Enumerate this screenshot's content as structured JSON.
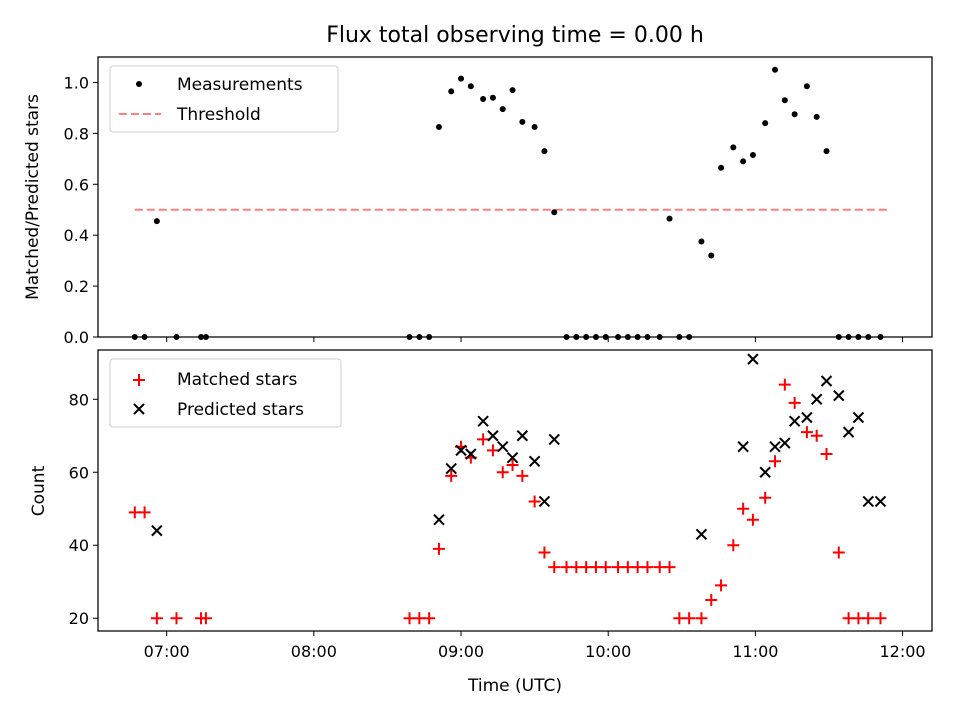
{
  "title": "Flux total observing time = 0.00 h",
  "chart_data": [
    {
      "type": "scatter",
      "ylabel": "Matched/Predicted stars",
      "xlabel": "",
      "xlim": [
        "06:32",
        "12:12"
      ],
      "ylim": [
        0,
        1.1
      ],
      "yticks": [
        0.0,
        0.2,
        0.4,
        0.6,
        0.8,
        1.0
      ],
      "ytick_labels": [
        "0.0",
        "0.2",
        "0.4",
        "0.6",
        "0.8",
        "1.0"
      ],
      "grid": false,
      "legend_position": "top-left",
      "legend": [
        {
          "label": "Measurements",
          "color": "#000000",
          "marker": "dot"
        },
        {
          "label": "Threshold",
          "color": "#ff7f7f",
          "marker": "dashed-line"
        }
      ],
      "threshold": {
        "value": 0.5,
        "x_range": [
          "06:47",
          "11:55"
        ]
      },
      "series": [
        {
          "name": "Measurements",
          "color": "#000000",
          "x": [
            "06:47",
            "06:51",
            "06:56",
            "07:04",
            "07:14",
            "07:16",
            "08:39",
            "08:43",
            "08:47",
            "08:51",
            "08:56",
            "09:00",
            "09:04",
            "09:09",
            "09:13",
            "09:17",
            "09:21",
            "09:25",
            "09:30",
            "09:34",
            "09:38",
            "09:43",
            "09:47",
            "09:51",
            "09:55",
            "09:59",
            "10:04",
            "10:08",
            "10:12",
            "10:16",
            "10:21",
            "10:25",
            "10:29",
            "10:33",
            "10:38",
            "10:42",
            "10:46",
            "10:51",
            "10:55",
            "10:59",
            "11:04",
            "11:08",
            "11:12",
            "11:16",
            "11:21",
            "11:25",
            "11:29",
            "11:34",
            "11:38",
            "11:42",
            "11:46",
            "11:51"
          ],
          "y": [
            0.0,
            0.0,
            0.455,
            0.0,
            0.0,
            0.0,
            0.0,
            0.0,
            0.0,
            0.825,
            0.965,
            1.015,
            0.985,
            0.935,
            0.94,
            0.895,
            0.97,
            0.845,
            0.825,
            0.73,
            0.49,
            0.0,
            0.0,
            0.0,
            0.0,
            0.0,
            0.0,
            0.0,
            0.0,
            0.0,
            0.0,
            0.465,
            0.0,
            0.0,
            0.375,
            0.32,
            0.665,
            0.745,
            0.69,
            0.715,
            0.84,
            1.05,
            0.93,
            0.875,
            0.985,
            0.865,
            0.73,
            0.0,
            0.0,
            0.0,
            0.0,
            0.0
          ]
        }
      ]
    },
    {
      "type": "scatter",
      "ylabel": "Count",
      "xlabel": "Time (UTC)",
      "xlim": [
        "06:32",
        "12:12"
      ],
      "ylim": [
        16.5,
        93.5
      ],
      "yticks": [
        20,
        40,
        60,
        80
      ],
      "ytick_labels": [
        "20",
        "40",
        "60",
        "80"
      ],
      "xticks": [
        "07:00",
        "08:00",
        "09:00",
        "10:00",
        "11:00",
        "12:00"
      ],
      "grid": false,
      "legend_position": "top-left",
      "legend": [
        {
          "label": "Matched stars",
          "color": "#ff0000",
          "marker": "plus"
        },
        {
          "label": "Predicted stars",
          "color": "#000000",
          "marker": "x"
        }
      ],
      "series": [
        {
          "name": "Matched stars",
          "color": "#ff0000",
          "marker": "plus",
          "x": [
            "06:47",
            "06:51",
            "06:56",
            "07:04",
            "07:14",
            "07:16",
            "08:39",
            "08:43",
            "08:47",
            "08:51",
            "08:56",
            "09:00",
            "09:04",
            "09:09",
            "09:13",
            "09:17",
            "09:21",
            "09:25",
            "09:30",
            "09:34",
            "09:38",
            "09:43",
            "09:47",
            "09:51",
            "09:55",
            "09:59",
            "10:04",
            "10:08",
            "10:12",
            "10:16",
            "10:21",
            "10:25",
            "10:29",
            "10:33",
            "10:38",
            "10:42",
            "10:46",
            "10:51",
            "10:55",
            "10:59",
            "11:04",
            "11:08",
            "11:12",
            "11:16",
            "11:21",
            "11:25",
            "11:29",
            "11:34",
            "11:38",
            "11:42",
            "11:46",
            "11:51"
          ],
          "y": [
            49,
            49,
            20,
            20,
            20,
            20,
            20,
            20,
            20,
            39,
            59,
            67,
            64,
            69,
            66,
            60,
            62,
            59,
            52,
            38,
            34,
            34,
            34,
            34,
            34,
            34,
            34,
            34,
            34,
            34,
            34,
            34,
            20,
            20,
            20,
            25,
            29,
            40,
            50,
            47,
            53,
            63,
            84,
            79,
            71,
            70,
            65,
            38,
            20,
            20,
            20,
            20
          ]
        },
        {
          "name": "Predicted stars",
          "color": "#000000",
          "marker": "x",
          "x": [
            "06:56",
            "08:51",
            "08:56",
            "09:00",
            "09:04",
            "09:09",
            "09:13",
            "09:17",
            "09:21",
            "09:25",
            "09:30",
            "09:34",
            "09:38",
            "10:38",
            "10:55",
            "10:59",
            "11:04",
            "11:08",
            "11:12",
            "11:16",
            "11:21",
            "11:25",
            "11:29",
            "11:34",
            "11:38",
            "11:42",
            "11:46",
            "11:51"
          ],
          "y": [
            44,
            47,
            61,
            66,
            65,
            74,
            70,
            67,
            64,
            70,
            63,
            52,
            69,
            43,
            67,
            91,
            60,
            67,
            68,
            74,
            75,
            80,
            85,
            81,
            71,
            75,
            52,
            52
          ]
        }
      ]
    }
  ]
}
